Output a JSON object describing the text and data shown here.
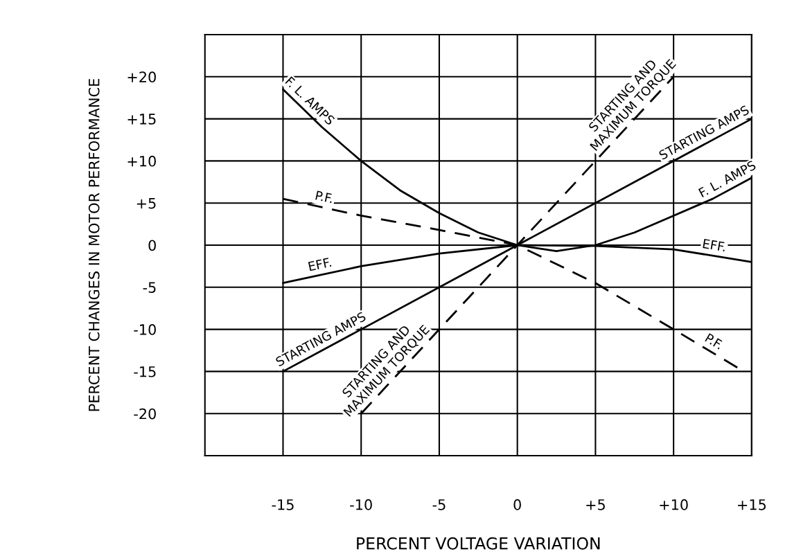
{
  "chart_data": {
    "type": "line",
    "xlabel": "PERCENT VOLTAGE VARIATION",
    "ylabel": "PERCENT CHANGES IN MOTOR PERFORMANCE",
    "xlim": [
      -20,
      15
    ],
    "ylim": [
      -25,
      25
    ],
    "xticks": [
      {
        "value": -15,
        "label": "-15"
      },
      {
        "value": -10,
        "label": "-10"
      },
      {
        "value": -5,
        "label": "-5"
      },
      {
        "value": 0,
        "label": "0"
      },
      {
        "value": 5,
        "label": "+5"
      },
      {
        "value": 10,
        "label": "+10"
      },
      {
        "value": 15,
        "label": "+15"
      }
    ],
    "yticks": [
      {
        "value": -20,
        "label": "-20"
      },
      {
        "value": -15,
        "label": "-15"
      },
      {
        "value": -10,
        "label": "-10"
      },
      {
        "value": -5,
        "label": "-5"
      },
      {
        "value": 0,
        "label": "0"
      },
      {
        "value": 5,
        "label": "+5"
      },
      {
        "value": 10,
        "label": "+10"
      },
      {
        "value": 15,
        "label": "+15"
      },
      {
        "value": 20,
        "label": "+20"
      }
    ],
    "grid": true,
    "legend": false,
    "series": [
      {
        "name": "F. L. AMPS",
        "color": "#000000",
        "line_style": "solid",
        "x": [
          -15,
          -12.5,
          -10,
          -7.5,
          -5,
          -2.5,
          0,
          2.5,
          5,
          7.5,
          10,
          12.5,
          15
        ],
        "values": [
          18.5,
          14,
          10,
          6.5,
          3.8,
          1.5,
          0,
          -0.7,
          0,
          1.5,
          3.5,
          5.5,
          8
        ]
      },
      {
        "name": "STARTING AMPS",
        "color": "#000000",
        "line_style": "solid",
        "x": [
          -15,
          0,
          15
        ],
        "values": [
          -15,
          0,
          15
        ]
      },
      {
        "name": "STARTING AND\nMAXIMUM TORQUE",
        "color": "#000000",
        "line_style": "dashed",
        "x": [
          -10,
          0,
          10
        ],
        "values": [
          -20,
          0,
          20
        ]
      },
      {
        "name": "P.F.",
        "color": "#000000",
        "line_style": "dashed",
        "x": [
          -15,
          -10,
          -5,
          0,
          5,
          10,
          14.5
        ],
        "values": [
          5.5,
          3.5,
          1.8,
          0,
          -4.5,
          -10,
          -15
        ]
      },
      {
        "name": "EFF.",
        "color": "#000000",
        "line_style": "solid",
        "x": [
          -15,
          -10,
          -5,
          0,
          5,
          10,
          15
        ],
        "values": [
          -4.5,
          -2.5,
          -1,
          0,
          -0.1,
          -0.5,
          -2
        ]
      }
    ]
  }
}
